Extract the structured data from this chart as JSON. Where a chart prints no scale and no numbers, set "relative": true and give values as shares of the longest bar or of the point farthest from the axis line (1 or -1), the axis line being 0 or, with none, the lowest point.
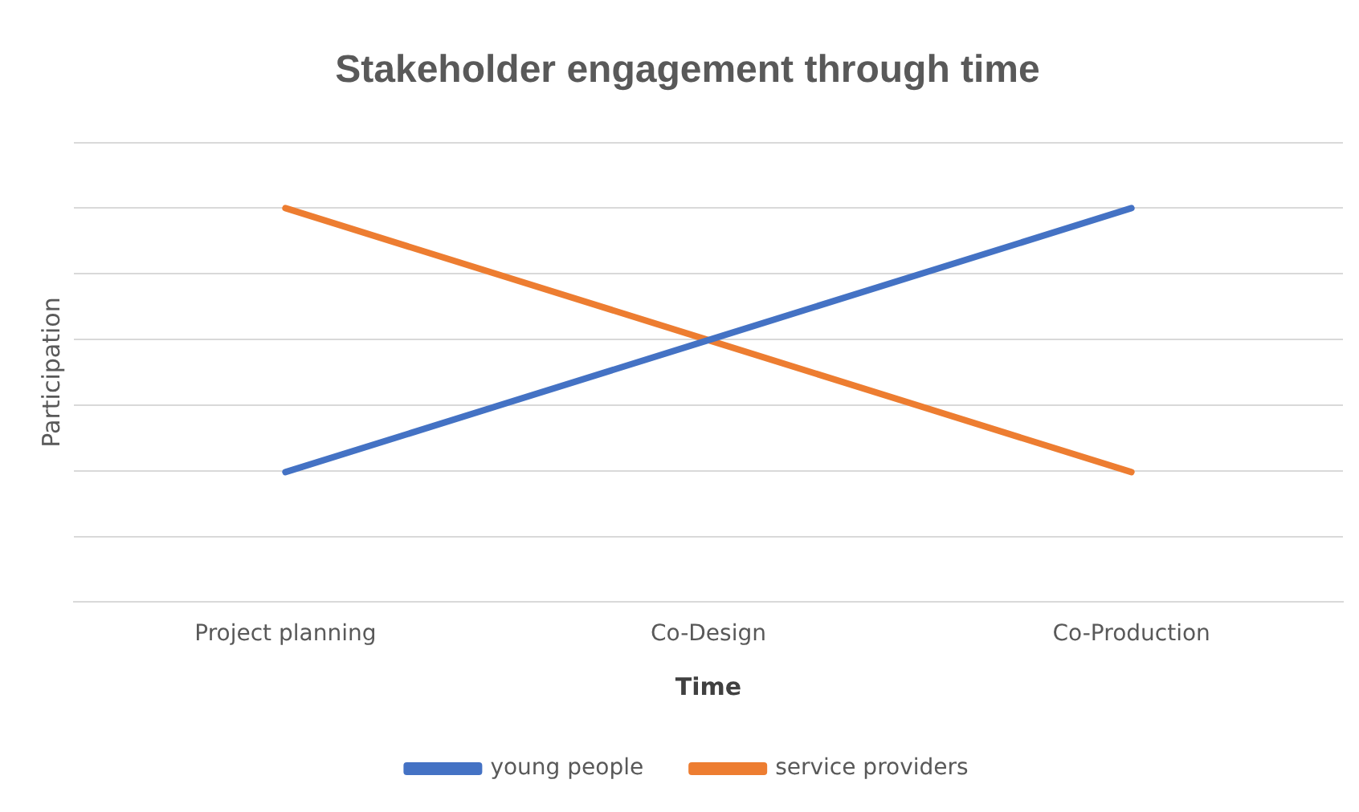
{
  "chart_data": {
    "type": "line",
    "title": "Stakeholder engagement through time",
    "xlabel": "Time",
    "ylabel": "Participation",
    "categories": [
      "Project planning",
      "Co-Design",
      "Co-Production"
    ],
    "relative": true,
    "grid": "y",
    "legend": "bottom",
    "marker": "none",
    "series": [
      {
        "name": "young people",
        "color": "#4472c4",
        "values": [
          0.33,
          0.665,
          1
        ]
      },
      {
        "name": "service providers",
        "color": "#ed7d31",
        "values": [
          1,
          0.665,
          0.33
        ]
      }
    ]
  }
}
